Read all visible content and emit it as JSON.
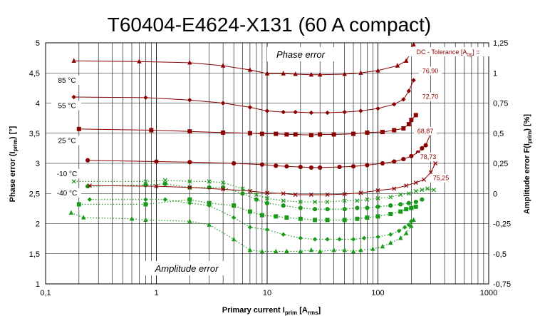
{
  "chart_data": {
    "type": "scatter",
    "title": "T60404-E4624-X131  (60 A compact)",
    "xlabel": {
      "main": "Primary current I",
      "sub": "prim",
      "bracket_open": " [A",
      "unit_sub": "rms",
      "bracket_close": "]"
    },
    "ylabel_left": {
      "main": "Phase error  (I",
      "sub": "prim",
      "end": ") [°]"
    },
    "ylabel_right": {
      "main": "Amplitude error F(I",
      "sub": "prim",
      "end": ") [%]"
    },
    "x_scale": "log",
    "xlim": [
      0.1,
      1000
    ],
    "ylim_left": [
      1,
      5
    ],
    "ylim_right": [
      -0.75,
      1.25
    ],
    "x_tick_labels": [
      "0,1",
      "1",
      "10",
      "100",
      "1000"
    ],
    "y_left_tick_labels": [
      "1",
      "1,5",
      "2",
      "2,5",
      "3",
      "3,5",
      "4",
      "4,5",
      "5"
    ],
    "y_right_tick_labels": [
      "-0,75",
      "-0,5",
      "-0,25",
      "0",
      "0,25",
      "0,5",
      "0,75",
      "1",
      "1,25"
    ],
    "grid": true,
    "annotations": {
      "phase_error": "Phase error",
      "amplitude_error": "Amplitude error",
      "tolerance_header": {
        "main": "DC - Tolerance [A",
        "sub": "0p",
        "end": "] ="
      }
    },
    "colors": {
      "phase": "#8b0000",
      "amplitude": "#1a9a1a",
      "grid": "#000000"
    },
    "temperatures": [
      {
        "label": "85 °C",
        "marker": "triangle",
        "tolerance": "76,90",
        "phase": [
          [
            0.18,
            4.7
          ],
          [
            0.7,
            4.69
          ],
          [
            2,
            4.67
          ],
          [
            4,
            4.62
          ],
          [
            7,
            4.55
          ],
          [
            10,
            4.49
          ],
          [
            14,
            4.49
          ],
          [
            18,
            4.48
          ],
          [
            25,
            4.47
          ],
          [
            30,
            4.47
          ],
          [
            50,
            4.48
          ],
          [
            70,
            4.5
          ],
          [
            100,
            4.54
          ],
          [
            150,
            4.62
          ],
          [
            180,
            4.7
          ],
          [
            200,
            4.85
          ],
          [
            210,
            4.97
          ]
        ],
        "amplitude": [
          [
            0.17,
            -0.16
          ],
          [
            0.22,
            -0.2
          ],
          [
            0.6,
            -0.21
          ],
          [
            0.8,
            -0.22
          ],
          [
            2,
            -0.23
          ],
          [
            3,
            -0.26
          ],
          [
            5,
            -0.38
          ],
          [
            7,
            -0.47
          ],
          [
            9,
            -0.48
          ],
          [
            12,
            -0.48
          ],
          [
            15,
            -0.48
          ],
          [
            20,
            -0.48
          ],
          [
            25,
            -0.47
          ],
          [
            30,
            -0.48
          ],
          [
            40,
            -0.47
          ],
          [
            50,
            -0.47
          ],
          [
            60,
            -0.48
          ],
          [
            70,
            -0.47
          ],
          [
            90,
            -0.46
          ],
          [
            110,
            -0.44
          ],
          [
            130,
            -0.41
          ],
          [
            160,
            -0.37
          ],
          [
            180,
            -0.33
          ],
          [
            200,
            -0.27
          ],
          [
            210,
            -0.22
          ]
        ]
      },
      {
        "label": "55 °C",
        "marker": "diamond",
        "tolerance": "72,70",
        "phase": [
          [
            0.18,
            4.1
          ],
          [
            0.8,
            4.09
          ],
          [
            2,
            4.05
          ],
          [
            4,
            4.0
          ],
          [
            7,
            3.93
          ],
          [
            10,
            3.87
          ],
          [
            14,
            3.85
          ],
          [
            18,
            3.85
          ],
          [
            25,
            3.84
          ],
          [
            35,
            3.84
          ],
          [
            50,
            3.85
          ],
          [
            70,
            3.87
          ],
          [
            100,
            3.91
          ],
          [
            140,
            3.98
          ],
          [
            170,
            4.06
          ],
          [
            190,
            4.2
          ],
          [
            210,
            4.38
          ]
        ],
        "amplitude": [
          [
            0.25,
            -0.05
          ],
          [
            0.8,
            -0.05
          ],
          [
            1.2,
            -0.05
          ],
          [
            2,
            -0.08
          ],
          [
            3,
            -0.1
          ],
          [
            5,
            -0.2
          ],
          [
            7,
            -0.28
          ],
          [
            10,
            -0.3
          ],
          [
            14,
            -0.34
          ],
          [
            20,
            -0.37
          ],
          [
            27,
            -0.38
          ],
          [
            35,
            -0.38
          ],
          [
            45,
            -0.38
          ],
          [
            60,
            -0.38
          ],
          [
            75,
            -0.37
          ],
          [
            100,
            -0.36
          ],
          [
            130,
            -0.34
          ],
          [
            155,
            -0.31
          ],
          [
            175,
            -0.28
          ],
          [
            190,
            -0.26
          ],
          [
            200,
            -0.23
          ]
        ]
      },
      {
        "label": "25 °C",
        "marker": "square",
        "tolerance": "68,87",
        "phase": [
          [
            0.2,
            3.57
          ],
          [
            0.9,
            3.55
          ],
          [
            2,
            3.53
          ],
          [
            4,
            3.51
          ],
          [
            7,
            3.5
          ],
          [
            9,
            3.49
          ],
          [
            12,
            3.49
          ],
          [
            15,
            3.48
          ],
          [
            18,
            3.48
          ],
          [
            25,
            3.47
          ],
          [
            30,
            3.48
          ],
          [
            40,
            3.48
          ],
          [
            60,
            3.49
          ],
          [
            80,
            3.51
          ],
          [
            110,
            3.52
          ],
          [
            140,
            3.55
          ],
          [
            170,
            3.58
          ],
          [
            190,
            3.65
          ],
          [
            200,
            3.72
          ],
          [
            220,
            3.8
          ]
        ],
        "amplitude": [
          [
            0.2,
            -0.09
          ],
          [
            0.8,
            -0.09
          ],
          [
            2,
            -0.05
          ],
          [
            3,
            -0.08
          ],
          [
            5,
            -0.1
          ],
          [
            7,
            -0.15
          ],
          [
            9,
            -0.18
          ],
          [
            12,
            -0.19
          ],
          [
            15,
            -0.2
          ],
          [
            20,
            -0.21
          ],
          [
            27,
            -0.22
          ],
          [
            35,
            -0.22
          ],
          [
            50,
            -0.22
          ],
          [
            65,
            -0.21
          ],
          [
            80,
            -0.2
          ],
          [
            100,
            -0.19
          ],
          [
            130,
            -0.17
          ],
          [
            160,
            -0.15
          ],
          [
            180,
            -0.13
          ],
          [
            200,
            -0.12
          ],
          [
            220,
            -0.11
          ]
        ]
      },
      {
        "label": "-10 °C",
        "marker": "circle",
        "tolerance": "78,73",
        "phase": [
          [
            0.24,
            3.05
          ],
          [
            1,
            3.03
          ],
          [
            2,
            3.02
          ],
          [
            5,
            3.0
          ],
          [
            9,
            2.98
          ],
          [
            12,
            2.96
          ],
          [
            15,
            2.95
          ],
          [
            20,
            2.94
          ],
          [
            25,
            2.93
          ],
          [
            30,
            2.93
          ],
          [
            45,
            2.94
          ],
          [
            60,
            2.95
          ],
          [
            80,
            2.97
          ],
          [
            110,
            3.0
          ],
          [
            140,
            3.03
          ],
          [
            170,
            3.07
          ],
          [
            200,
            3.12
          ],
          [
            230,
            3.18
          ],
          [
            250,
            3.25
          ],
          [
            270,
            3.3
          ],
          [
            300,
            3.5
          ]
        ],
        "amplitude": [
          [
            0.24,
            0.06
          ],
          [
            0.8,
            0.07
          ],
          [
            1.2,
            0.08
          ],
          [
            2,
            0.05
          ],
          [
            3,
            0.05
          ],
          [
            4,
            0.05
          ],
          [
            6,
            0.0
          ],
          [
            8,
            -0.05
          ],
          [
            10,
            -0.08
          ],
          [
            14,
            -0.1
          ],
          [
            20,
            -0.12
          ],
          [
            27,
            -0.13
          ],
          [
            35,
            -0.13
          ],
          [
            50,
            -0.13
          ],
          [
            65,
            -0.12
          ],
          [
            80,
            -0.12
          ],
          [
            100,
            -0.11
          ],
          [
            130,
            -0.1
          ],
          [
            160,
            -0.09
          ],
          [
            190,
            -0.08
          ],
          [
            220,
            -0.07
          ],
          [
            250,
            -0.05
          ]
        ]
      },
      {
        "label": "-40 °C",
        "marker": "cross",
        "tolerance": "75,25",
        "phase": [
          [
            0.25,
            2.63
          ],
          [
            1,
            2.62
          ],
          [
            2,
            2.6
          ],
          [
            4,
            2.57
          ],
          [
            7,
            2.54
          ],
          [
            10,
            2.51
          ],
          [
            14,
            2.5
          ],
          [
            18,
            2.48
          ],
          [
            25,
            2.48
          ],
          [
            35,
            2.48
          ],
          [
            50,
            2.49
          ],
          [
            70,
            2.51
          ],
          [
            100,
            2.55
          ],
          [
            140,
            2.58
          ],
          [
            180,
            2.63
          ],
          [
            220,
            2.68
          ],
          [
            260,
            2.73
          ],
          [
            300,
            2.85
          ],
          [
            330,
            3.0
          ]
        ],
        "amplitude": [
          [
            0.18,
            0.1
          ],
          [
            0.8,
            0.1
          ],
          [
            1.2,
            0.11
          ],
          [
            2,
            0.1
          ],
          [
            3,
            0.1
          ],
          [
            4,
            0.09
          ],
          [
            6,
            0.04
          ],
          [
            8,
            -0.01
          ],
          [
            10,
            -0.04
          ],
          [
            14,
            -0.06
          ],
          [
            20,
            -0.07
          ],
          [
            27,
            -0.07
          ],
          [
            35,
            -0.07
          ],
          [
            50,
            -0.06
          ],
          [
            65,
            -0.06
          ],
          [
            80,
            -0.05
          ],
          [
            100,
            -0.04
          ],
          [
            130,
            -0.03
          ],
          [
            160,
            -0.01
          ],
          [
            190,
            0.0
          ],
          [
            220,
            0.02
          ],
          [
            250,
            0.03
          ],
          [
            280,
            0.04
          ],
          [
            320,
            0.03
          ]
        ]
      }
    ]
  }
}
